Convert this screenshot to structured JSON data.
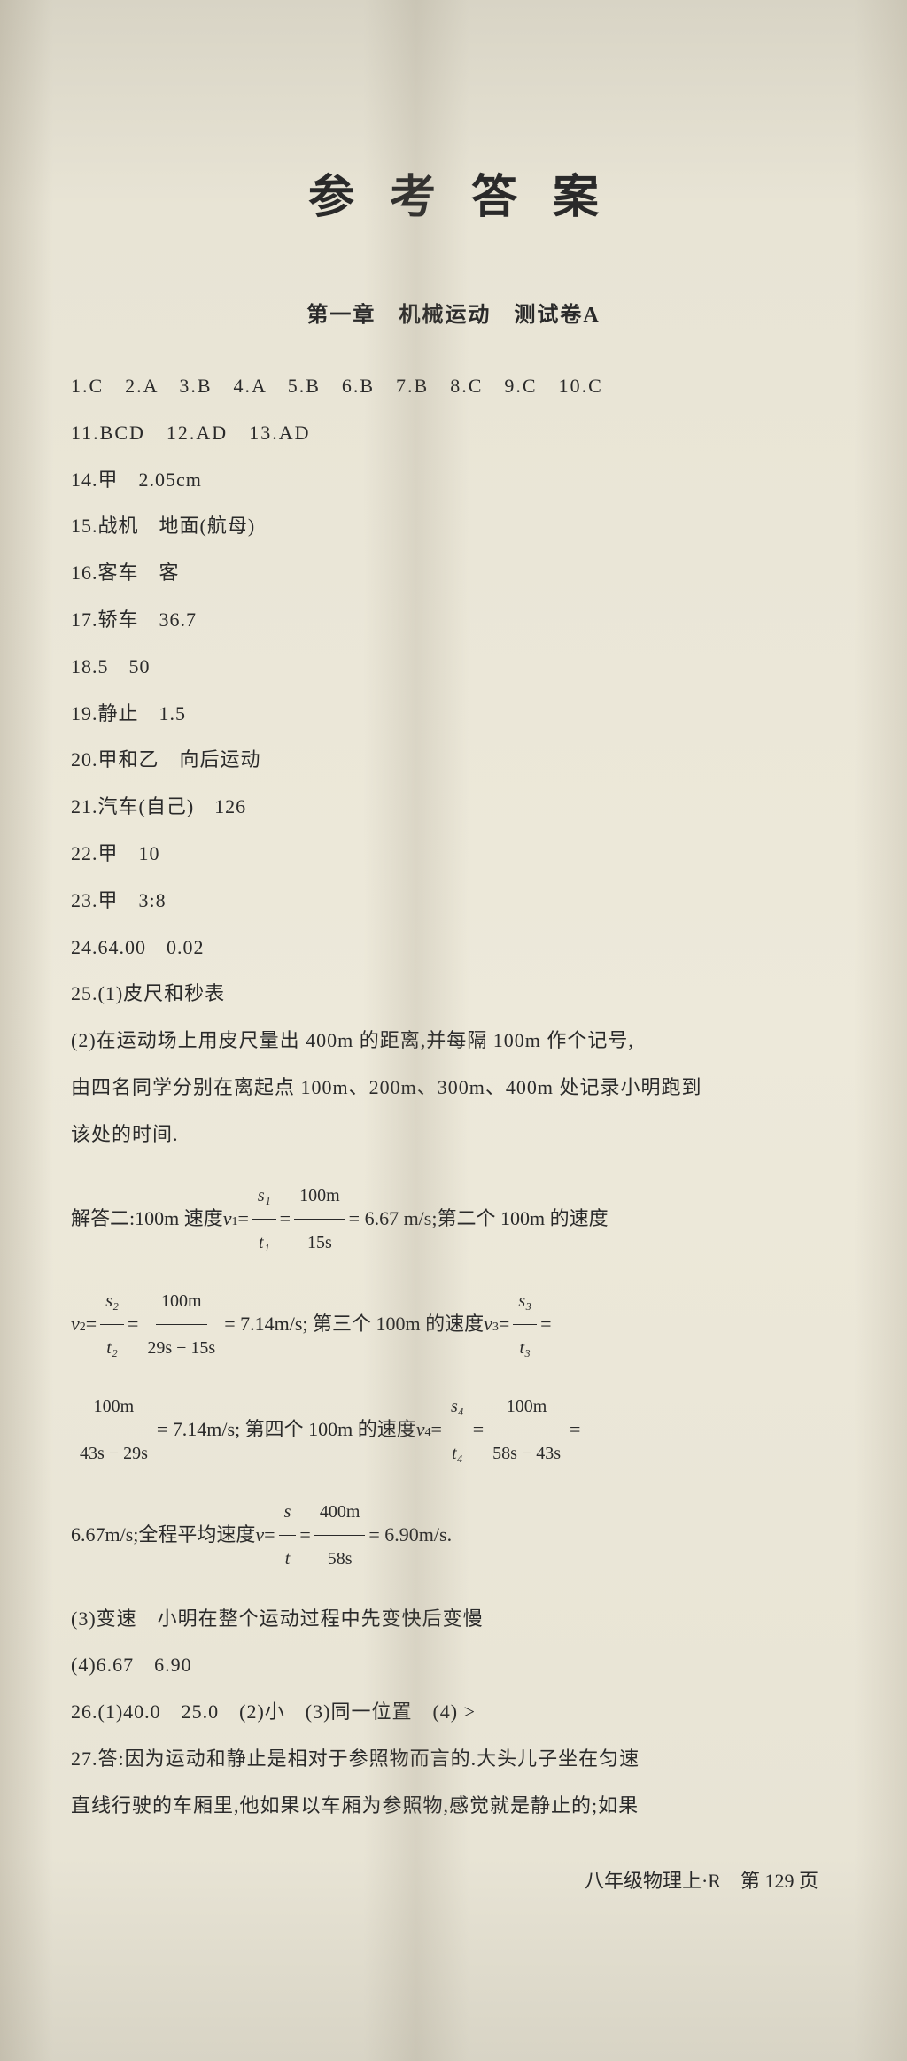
{
  "title": "参考答案",
  "subtitle": "第一章　机械运动　测试卷A",
  "mcq_rows": [
    "1.C　2.A　3.B　4.A　5.B　6.B　7.B　8.C　9.C　10.C",
    "11.BCD　12.AD　13.AD"
  ],
  "answers": [
    "14.甲　2.05cm",
    "15.战机　地面(航母)",
    "16.客车　客",
    "17.轿车　36.7",
    "18.5　50",
    "19.静止　1.5",
    "20.甲和乙　向后运动",
    "21.汽车(自己)　126",
    "22.甲　10",
    "23.甲　3:8",
    "24.64.00　0.02",
    "25.(1)皮尺和秒表"
  ],
  "q25_part2": [
    "(2)在运动场上用皮尺量出 400m 的距离,并每隔 100m 作个记号,",
    "由四名同学分别在离起点 100m、200m、300m、400m 处记录小明跑到",
    "该处的时间."
  ],
  "formula": {
    "prefix": "解答二:100m 速度 ",
    "v1_label": "v",
    "v1_sub": "1",
    "eq": " = ",
    "f1_num": "s₁",
    "f1_den": "t₁",
    "f2_num": "100m",
    "f2_den": "15s",
    "v1_result": " = 6.67 m/s;第二个 100m 的速度",
    "v2_label": "v",
    "v2_sub": "2",
    "f3_num": "s₂",
    "f3_den": "t₂",
    "f4_num": "100m",
    "f4_den": "29s − 15s",
    "v2_result": " = 7.14m/s; 第三个 100m 的速度 ",
    "v3_label": "v",
    "v3_sub": "3",
    "f5_num": "s₃",
    "f5_den": "t₃",
    "f6_num": "100m",
    "f6_den": "43s − 29s",
    "v3_result": " = 7.14m/s; 第四个 100m 的速度 ",
    "v4_label": "v",
    "v4_sub": "4",
    "f7_num": "s₄",
    "f7_den": "t₄",
    "f8_num": "100m",
    "f8_den": "58s − 43s",
    "v4_result_prefix": "6.67m/s;全程平均速度 ",
    "vavg_label": "v",
    "f9_num": "s",
    "f9_den": "t",
    "f10_num": "400m",
    "f10_den": "58s",
    "vavg_result": " = 6.90m/s."
  },
  "q25_parts_after": [
    "(3)变速　小明在整个运动过程中先变快后变慢",
    "(4)6.67　6.90"
  ],
  "q26": "26.(1)40.0　25.0　(2)小　(3)同一位置　(4) >",
  "q27": [
    "27.答:因为运动和静止是相对于参照物而言的.大头儿子坐在匀速",
    "直线行驶的车厢里,他如果以车厢为参照物,感觉就是静止的;如果"
  ],
  "footer": "八年级物理上·R　第 129 页",
  "colors": {
    "background": "#e8e4d5",
    "text": "#2a2a2a"
  },
  "fonts": {
    "title_family": "KaiTi",
    "body_family": "SimSun",
    "title_size": 52,
    "body_size": 22
  }
}
